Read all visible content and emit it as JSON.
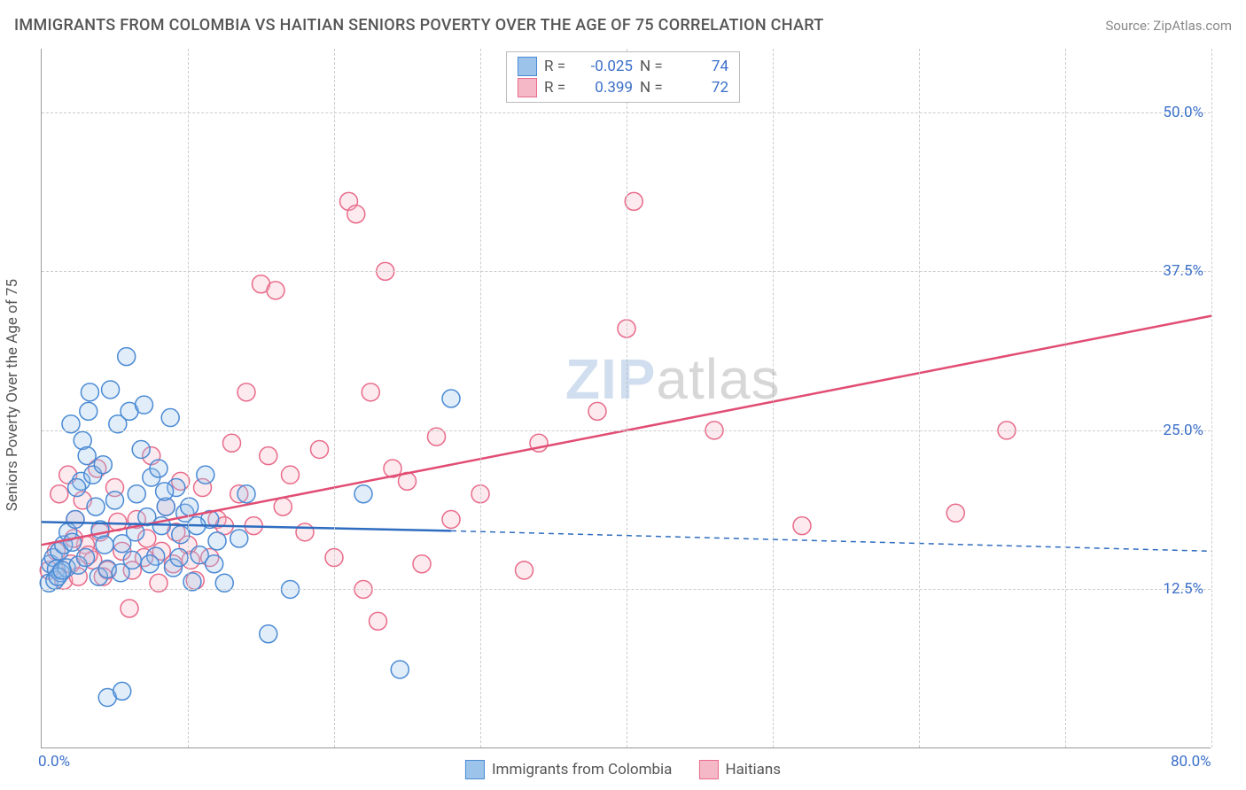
{
  "title": "IMMIGRANTS FROM COLOMBIA VS HAITIAN SENIORS POVERTY OVER THE AGE OF 75 CORRELATION CHART",
  "source": "Source: ZipAtlas.com",
  "y_axis_label": "Seniors Poverty Over the Age of 75",
  "watermark": {
    "part1": "ZIP",
    "part2": "atlas"
  },
  "chart": {
    "type": "scatter",
    "xlim": [
      0,
      80
    ],
    "ylim": [
      0,
      55
    ],
    "x_ticks": [
      {
        "value": 0,
        "label": "0.0%"
      },
      {
        "value": 80,
        "label": "80.0%"
      }
    ],
    "y_ticks": [
      {
        "value": 12.5,
        "label": "12.5%"
      },
      {
        "value": 25.0,
        "label": "25.0%"
      },
      {
        "value": 37.5,
        "label": "37.5%"
      },
      {
        "value": 50.0,
        "label": "50.0%"
      }
    ],
    "x_gridlines": [
      10,
      20,
      30,
      40,
      50,
      60,
      70,
      80
    ],
    "background_color": "#ffffff",
    "grid_color": "#cccccc",
    "axis_color": "#999999",
    "tick_label_color": "#3b6fc9",
    "markers": {
      "radius": 10,
      "stroke_width": 1.5,
      "fill_opacity": 0.3
    },
    "series": [
      {
        "name": "Immigrants from Colombia",
        "color_stroke": "#4a8ad4",
        "color_fill": "#9cc3ea",
        "R": "-0.025",
        "N": "74",
        "points": [
          [
            0.5,
            13
          ],
          [
            0.6,
            14.5
          ],
          [
            0.8,
            15
          ],
          [
            0.9,
            13.2
          ],
          [
            1.0,
            14.1
          ],
          [
            1.2,
            15.5
          ],
          [
            1.3,
            13.8
          ],
          [
            1.5,
            16
          ],
          [
            1.7,
            14.2
          ],
          [
            1.8,
            17
          ],
          [
            2.0,
            25.5
          ],
          [
            2.1,
            16.2
          ],
          [
            2.3,
            18
          ],
          [
            2.5,
            14.4
          ],
          [
            2.7,
            21
          ],
          [
            2.8,
            24.2
          ],
          [
            3.0,
            15
          ],
          [
            3.2,
            26.5
          ],
          [
            3.3,
            28
          ],
          [
            3.5,
            21.5
          ],
          [
            3.7,
            19
          ],
          [
            3.9,
            13.5
          ],
          [
            4.0,
            17.2
          ],
          [
            4.2,
            22.3
          ],
          [
            4.5,
            14.1
          ],
          [
            4.7,
            28.2
          ],
          [
            5.0,
            19.5
          ],
          [
            5.2,
            25.5
          ],
          [
            5.5,
            16.1
          ],
          [
            5.8,
            30.8
          ],
          [
            6.0,
            26.5
          ],
          [
            6.2,
            14.8
          ],
          [
            6.5,
            20
          ],
          [
            6.8,
            23.5
          ],
          [
            7.0,
            27.0
          ],
          [
            7.2,
            18.2
          ],
          [
            7.5,
            21.3
          ],
          [
            7.8,
            15.1
          ],
          [
            8.0,
            22.0
          ],
          [
            8.2,
            17.5
          ],
          [
            8.5,
            19.0
          ],
          [
            8.8,
            26.0
          ],
          [
            9.0,
            14.2
          ],
          [
            9.2,
            20.5
          ],
          [
            9.5,
            16.8
          ],
          [
            9.8,
            18.5
          ],
          [
            10.3,
            13.1
          ],
          [
            10.8,
            15.2
          ],
          [
            11.2,
            21.5
          ],
          [
            11.5,
            18.0
          ],
          [
            12.0,
            16.3
          ],
          [
            12.5,
            13.0
          ],
          [
            4.5,
            4.0
          ],
          [
            5.5,
            4.5
          ],
          [
            13.5,
            16.5
          ],
          [
            14.0,
            20.0
          ],
          [
            15.5,
            9.0
          ],
          [
            17.0,
            12.5
          ],
          [
            22.0,
            20.0
          ],
          [
            24.5,
            6.2
          ],
          [
            28.0,
            27.5
          ],
          [
            1.1,
            13.5
          ],
          [
            1.4,
            14.0
          ],
          [
            2.4,
            20.5
          ],
          [
            3.1,
            23.0
          ],
          [
            4.3,
            16.0
          ],
          [
            5.4,
            13.8
          ],
          [
            6.4,
            17.0
          ],
          [
            7.4,
            14.5
          ],
          [
            8.4,
            20.2
          ],
          [
            9.4,
            15.0
          ],
          [
            10.1,
            19.0
          ],
          [
            10.6,
            17.5
          ],
          [
            11.8,
            14.5
          ]
        ],
        "trend": {
          "solid": {
            "x1": 0,
            "y1": 17.8,
            "x2": 28,
            "y2": 17.1
          },
          "dashed": {
            "x1": 28,
            "y1": 17.1,
            "x2": 80,
            "y2": 15.5
          },
          "stroke_width": 2.5,
          "color": "#2e6cc0"
        }
      },
      {
        "name": "Haitians",
        "color_stroke": "#e86b8a",
        "color_fill": "#f4b8c7",
        "R": "0.399",
        "N": "72",
        "points": [
          [
            0.5,
            14
          ],
          [
            1.0,
            15.5
          ],
          [
            1.2,
            20
          ],
          [
            1.5,
            13.2
          ],
          [
            1.8,
            21.5
          ],
          [
            2.0,
            14.5
          ],
          [
            2.3,
            18
          ],
          [
            2.5,
            13.5
          ],
          [
            2.8,
            19.5
          ],
          [
            3.0,
            16
          ],
          [
            3.5,
            14.8
          ],
          [
            3.8,
            22
          ],
          [
            4.0,
            17
          ],
          [
            4.5,
            14
          ],
          [
            5.0,
            20.5
          ],
          [
            5.5,
            15.5
          ],
          [
            6.0,
            11
          ],
          [
            6.5,
            18
          ],
          [
            7.0,
            15
          ],
          [
            7.5,
            23
          ],
          [
            8.0,
            13
          ],
          [
            8.5,
            19
          ],
          [
            9.0,
            14.5
          ],
          [
            9.5,
            21
          ],
          [
            10.0,
            16
          ],
          [
            10.5,
            13.2
          ],
          [
            11.0,
            20.5
          ],
          [
            11.5,
            15
          ],
          [
            12.0,
            18
          ],
          [
            12.5,
            17.5
          ],
          [
            13.0,
            24
          ],
          [
            13.5,
            20
          ],
          [
            14.0,
            28
          ],
          [
            14.5,
            17.5
          ],
          [
            15.0,
            36.5
          ],
          [
            15.5,
            23
          ],
          [
            16.0,
            36
          ],
          [
            16.5,
            19
          ],
          [
            17.0,
            21.5
          ],
          [
            18.0,
            17
          ],
          [
            19.0,
            23.5
          ],
          [
            20.0,
            15
          ],
          [
            21.0,
            43
          ],
          [
            21.5,
            42
          ],
          [
            22.0,
            12.5
          ],
          [
            22.5,
            28
          ],
          [
            23.0,
            10
          ],
          [
            23.5,
            37.5
          ],
          [
            24.0,
            22
          ],
          [
            25.0,
            21
          ],
          [
            26.0,
            14.5
          ],
          [
            27.0,
            24.5
          ],
          [
            28.0,
            18
          ],
          [
            30.0,
            20
          ],
          [
            33.0,
            14
          ],
          [
            34.0,
            24
          ],
          [
            38.0,
            26.5
          ],
          [
            40.0,
            33
          ],
          [
            40.5,
            43
          ],
          [
            46.0,
            25
          ],
          [
            52.0,
            17.5
          ],
          [
            62.5,
            18.5
          ],
          [
            66.0,
            25
          ],
          [
            2.2,
            16.5
          ],
          [
            3.2,
            15.2
          ],
          [
            4.2,
            13.5
          ],
          [
            5.2,
            17.8
          ],
          [
            6.2,
            14.0
          ],
          [
            7.2,
            16.5
          ],
          [
            8.2,
            15.5
          ],
          [
            9.2,
            17.0
          ],
          [
            10.2,
            14.8
          ]
        ],
        "trend": {
          "solid": {
            "x1": 0,
            "y1": 16.0,
            "x2": 80,
            "y2": 34.0
          },
          "stroke_width": 2.5,
          "color": "#e14d73"
        }
      }
    ]
  },
  "stats_box": {
    "r_label": "R =",
    "n_label": "N ="
  },
  "legend": {
    "series1": "Immigrants from Colombia",
    "series2": "Haitians"
  }
}
